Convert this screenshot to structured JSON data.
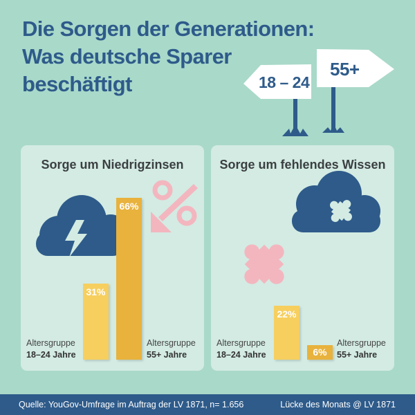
{
  "title": {
    "line1": "Die Sorgen der Generationen:",
    "line2": "Was deutsche Sparer",
    "line3": "beschäftigt"
  },
  "signs": {
    "left": "18 – 24",
    "right": "55+"
  },
  "colors": {
    "background": "#a9d9c9",
    "panel": "#d3ebe3",
    "navy": "#2e5b8a",
    "bar_young": "#f6cf5f",
    "bar_old": "#e8b23d",
    "pink": "#f3b6bf"
  },
  "icons": [
    "signpost-icon",
    "cloud-lightning-icon",
    "percent-down-icon",
    "cloud-puzzle-icon",
    "puzzle-piece-icon"
  ],
  "chart_data": [
    {
      "type": "bar",
      "title": "Sorge um Niedrigzinsen",
      "categories": [
        "Altersgruppe 18–24 Jahre",
        "Altersgruppe 55+ Jahre"
      ],
      "values": [
        31,
        66
      ],
      "labels": [
        "31%",
        "66%"
      ],
      "group_label": "Altersgruppe",
      "group_names": [
        "18–24 Jahre",
        "55+ Jahre"
      ],
      "unit": "%"
    },
    {
      "type": "bar",
      "title": "Sorge um fehlendes Wissen",
      "categories": [
        "Altersgruppe 18–24 Jahre",
        "Altersgruppe 55+ Jahre"
      ],
      "values": [
        22,
        6
      ],
      "labels": [
        "22%",
        "6%"
      ],
      "group_label": "Altersgruppe",
      "group_names": [
        "18–24 Jahre",
        "55+ Jahre"
      ],
      "unit": "%"
    }
  ],
  "footer": {
    "source": "Quelle: YouGov-Umfrage im Auftrag der LV 1871, n= 1.656",
    "credit": "Lücke des Monats @ LV 1871"
  }
}
